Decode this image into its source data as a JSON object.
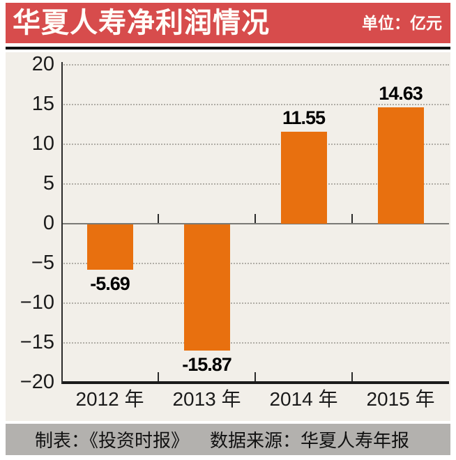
{
  "header": {
    "title": "华夏人寿净利润情况",
    "unit_label": "单位：亿元",
    "background": "#d74c4c",
    "text_color": "#fffdf8"
  },
  "chart_data": {
    "type": "bar",
    "title": "华夏人寿净利润情况",
    "unit": "亿元",
    "categories": [
      "2012 年",
      "2013 年",
      "2014 年",
      "2015 年"
    ],
    "values": [
      -5.69,
      -15.87,
      11.55,
      14.63
    ],
    "value_labels": [
      "-5.69",
      "-15.87",
      "11.55",
      "14.63"
    ],
    "ylim": [
      -20,
      20
    ],
    "ytick_interval": 5,
    "ytick_labels": [
      "20",
      "15",
      "10",
      "5",
      "0",
      "−5",
      "−10",
      "−15",
      "−20"
    ],
    "grid": "horizontal-dotted",
    "legend": "none",
    "bar_color": "#e8700f",
    "background": "#f2efe9",
    "label_color": "#000000"
  },
  "footer": {
    "credit": "制表：《投资时报》",
    "source": "数据来源：华夏人寿年报",
    "background": "#b3b1ae"
  }
}
